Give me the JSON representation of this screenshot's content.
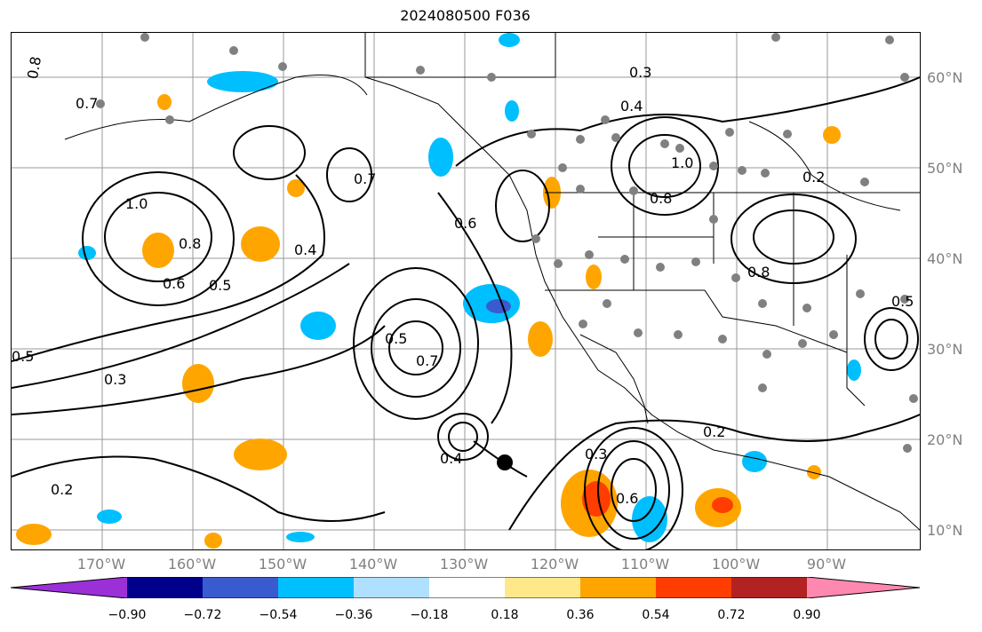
{
  "title": "2024080500 F036",
  "lat_labels": [
    "60°N",
    "50°N",
    "40°N",
    "30°N",
    "20°N",
    "10°N"
  ],
  "lon_labels": [
    "170°W",
    "160°W",
    "150°W",
    "140°W",
    "130°W",
    "120°W",
    "110°W",
    "100°W",
    "90°W"
  ],
  "contour_labels": [
    "0.8",
    "0.7",
    "1.0",
    "0.8",
    "0.6",
    "0.5",
    "0.4",
    "0.3",
    "0.2",
    "0.5",
    "0.7",
    "0.6",
    "0.5",
    "0.4",
    "0.3",
    "0.2",
    "0.6",
    "0.7",
    "0.8",
    "0.3",
    "0.4",
    "1.0",
    "0.8",
    "0.2",
    "0.5"
  ],
  "colorbar": {
    "ticks": [
      "−0.90",
      "−0.72",
      "−0.54",
      "−0.36",
      "−0.18",
      "0.18",
      "0.36",
      "0.54",
      "0.72",
      "0.90"
    ],
    "colors": [
      "#9b30d9",
      "#00008b",
      "#3a5bd0",
      "#00bfff",
      "#b0e0ff",
      "#ffffff",
      "#ffe88a",
      "#ffa500",
      "#ff3d00",
      "#b22222",
      "#ff88b0"
    ]
  },
  "marked_point": "black-dot"
}
